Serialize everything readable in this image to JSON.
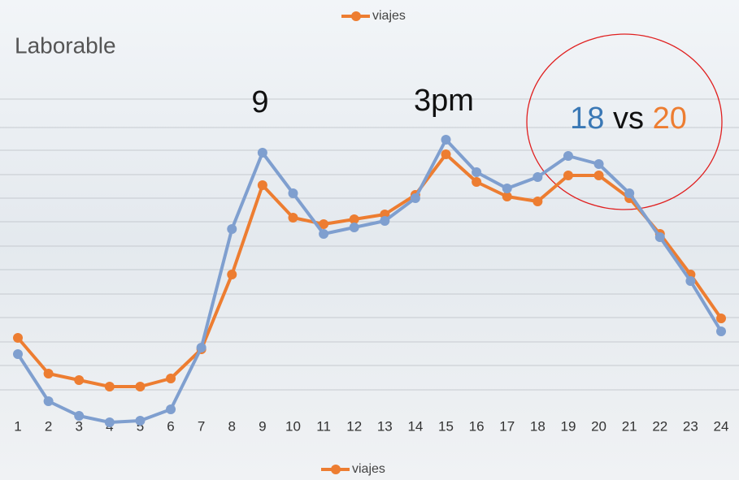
{
  "chart_data": {
    "type": "line",
    "title": "Laborable",
    "categories": [
      "1",
      "2",
      "3",
      "4",
      "5",
      "6",
      "7",
      "8",
      "9",
      "10",
      "11",
      "12",
      "13",
      "14",
      "15",
      "16",
      "17",
      "18",
      "19",
      "20",
      "21",
      "22",
      "23",
      "24"
    ],
    "series": [
      {
        "name": "viajes",
        "color": "#ed7d31",
        "values": [
          26,
          15,
          13,
          11,
          11,
          13.5,
          22.5,
          45.5,
          73,
          63,
          61,
          62.5,
          64,
          70,
          82.5,
          74,
          69.5,
          68,
          76,
          76,
          69,
          58,
          45.5,
          32
        ]
      },
      {
        "color": "#7f9fcf",
        "values": [
          21,
          6.5,
          2,
          0,
          0.5,
          4,
          23,
          59.5,
          83,
          70.5,
          58,
          60,
          62,
          69,
          87,
          77,
          72,
          75.5,
          82,
          79.5,
          70.5,
          57,
          43.5,
          28
        ]
      }
    ],
    "annotations": [
      "9",
      "3pm"
    ],
    "comparison": {
      "left": "18",
      "middle": "vs",
      "right": "20"
    },
    "ylim": [
      0,
      100
    ]
  }
}
